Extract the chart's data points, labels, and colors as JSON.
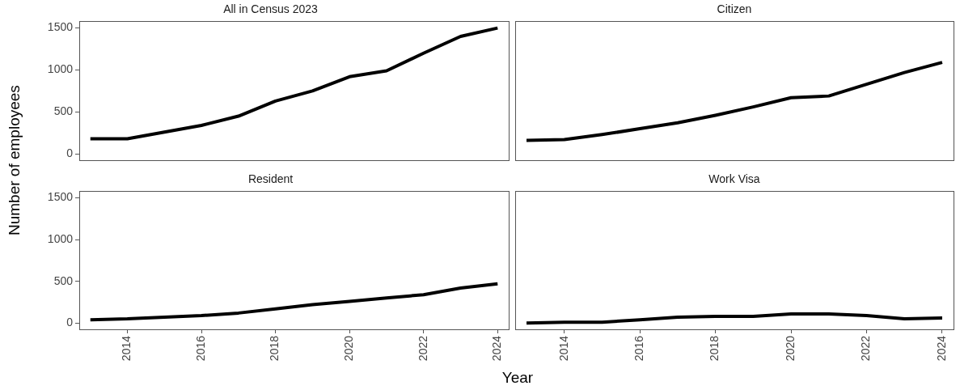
{
  "chart_data": [
    {
      "type": "line",
      "title": "All in Census 2023",
      "ylabel": "Number of employees",
      "x": [
        2013,
        2014,
        2015,
        2016,
        2017,
        2018,
        2019,
        2020,
        2021,
        2022,
        2023,
        2024
      ],
      "values": [
        180,
        180,
        260,
        340,
        450,
        630,
        750,
        920,
        990,
        1200,
        1400,
        1500
      ],
      "color": "#000000",
      "marker": "none",
      "xlim": [
        2012.7,
        2024.3
      ],
      "ylim": [
        -75,
        1575
      ],
      "xticks": [
        2014,
        2016,
        2018,
        2020,
        2022,
        2024
      ],
      "yticks": [
        0,
        500,
        1000,
        1500
      ],
      "tick_labels": "y"
    },
    {
      "type": "line",
      "title": "Citizen",
      "x": [
        2013,
        2014,
        2015,
        2016,
        2017,
        2018,
        2019,
        2020,
        2021,
        2022,
        2023,
        2024
      ],
      "values": [
        160,
        170,
        230,
        300,
        370,
        460,
        560,
        670,
        690,
        830,
        970,
        1090
      ],
      "color": "#000000",
      "marker": "none",
      "xlim": [
        2012.7,
        2024.3
      ],
      "ylim": [
        -75,
        1575
      ],
      "xticks": [
        2014,
        2016,
        2018,
        2020,
        2022,
        2024
      ],
      "yticks": [
        0,
        500,
        1000,
        1500
      ],
      "tick_labels": false
    },
    {
      "type": "line",
      "title": "Resident",
      "xlabel": "Year",
      "x": [
        2013,
        2014,
        2015,
        2016,
        2017,
        2018,
        2019,
        2020,
        2021,
        2022,
        2023,
        2024
      ],
      "values": [
        40,
        50,
        70,
        90,
        120,
        170,
        220,
        260,
        300,
        340,
        420,
        470
      ],
      "color": "#000000",
      "marker": "none",
      "xlim": [
        2012.7,
        2024.3
      ],
      "ylim": [
        -75,
        1575
      ],
      "xticks": [
        2014,
        2016,
        2018,
        2020,
        2022,
        2024
      ],
      "yticks": [
        0,
        500,
        1000,
        1500
      ]
    },
    {
      "type": "line",
      "title": "Work Visa",
      "x": [
        2013,
        2014,
        2015,
        2016,
        2017,
        2018,
        2019,
        2020,
        2021,
        2022,
        2023,
        2024
      ],
      "values": [
        0,
        10,
        10,
        40,
        70,
        80,
        80,
        110,
        110,
        90,
        50,
        60
      ],
      "color": "#000000",
      "marker": "none",
      "xlim": [
        2012.7,
        2024.3
      ],
      "ylim": [
        -75,
        1575
      ],
      "xticks": [
        2014,
        2016,
        2018,
        2020,
        2022,
        2024
      ],
      "yticks": [
        0,
        500,
        1000,
        1500
      ],
      "tick_labels": "x"
    }
  ]
}
